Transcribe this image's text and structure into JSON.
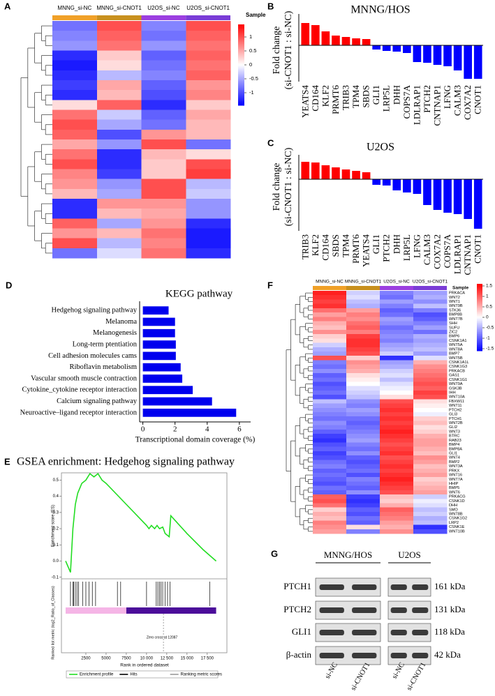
{
  "chart_data": [
    {
      "type": "heatmap",
      "label": "A",
      "columns": [
        "MNNG_si-NC",
        "MNNG_si-CNOT1",
        "U2OS_si-NC",
        "U2OS_si-CNOT1"
      ],
      "column_colors": [
        "#f0a028",
        "#c8901e",
        "#9b3fe0",
        "#7a3cd6"
      ],
      "legend_title": "Sample",
      "colors": [
        "#0000ff",
        "#ffffff",
        "#ff0000"
      ],
      "zlim": [
        -1.45,
        1.45
      ],
      "zticks": [
        1,
        0.5,
        0,
        -0.5,
        -1
      ],
      "values": [
        [
          -0.8,
          1.0,
          -0.7,
          1.0
        ],
        [
          -0.7,
          0.9,
          -0.8,
          0.9
        ],
        [
          -0.6,
          0.8,
          -0.6,
          0.8
        ],
        [
          -1.2,
          0.3,
          -0.9,
          0.9
        ],
        [
          -1.3,
          0.2,
          -0.8,
          0.8
        ],
        [
          -1.2,
          -0.4,
          -0.7,
          0.9
        ],
        [
          -1.1,
          0.5,
          -0.9,
          0.6
        ],
        [
          -1.2,
          0.4,
          -1.0,
          0.7
        ],
        [
          0.2,
          0.9,
          -1.2,
          0.3
        ],
        [
          0.8,
          -0.3,
          -0.9,
          0.5
        ],
        [
          1.0,
          -0.5,
          -0.8,
          0.4
        ],
        [
          0.9,
          -1.0,
          0.6,
          0.4
        ],
        [
          0.5,
          -0.6,
          1.0,
          -0.8
        ],
        [
          0.8,
          -1.2,
          0.4,
          0.2
        ],
        [
          1.0,
          -1.2,
          0.3,
          1.0
        ],
        [
          0.7,
          -1.1,
          0.3,
          1.1
        ],
        [
          0.6,
          -0.6,
          1.0,
          -0.4
        ],
        [
          0.4,
          -0.5,
          1.0,
          -0.3
        ],
        [
          -1.2,
          0.6,
          0.6,
          -0.6
        ],
        [
          -1.2,
          0.4,
          0.5,
          -0.6
        ],
        [
          0.9,
          -0.5,
          0.6,
          -1.2
        ],
        [
          0.6,
          0.4,
          0.8,
          -1.3
        ],
        [
          1.0,
          -0.4,
          0.7,
          -1.3
        ],
        [
          -0.8,
          -0.2,
          0.8,
          -1.2
        ]
      ]
    },
    {
      "type": "bar",
      "label": "B",
      "title": "MNNG/HOS",
      "ylabel": [
        "Fold change",
        "(si-CNOT1 : si-NC)"
      ],
      "categories": [
        "YEATS4",
        "CD164",
        "KLF2",
        "PRMT6",
        "TRIB3",
        "TPM4",
        "SBDS",
        "GLI1",
        "LRP5L",
        "DHH",
        "COPS7A",
        "LDLRAP1",
        "PTCH2",
        "CNTNAP1",
        "LFNG",
        "CALM3",
        "COX7A2",
        "CNOT1"
      ],
      "values": [
        1.6,
        1.45,
        1.0,
        0.7,
        0.6,
        0.5,
        0.45,
        -0.3,
        -0.4,
        -0.45,
        -0.55,
        -1.2,
        -1.25,
        -1.4,
        -1.5,
        -1.8,
        -2.4,
        -2.4
      ],
      "colors": {
        "positive": "#ff0000",
        "negative": "#0000ff"
      },
      "ylim": [
        -2.6,
        1.8
      ]
    },
    {
      "type": "bar",
      "label": "C",
      "title": "U2OS",
      "ylabel": [
        "Fold change",
        "(si-CNOT1 : si-NC)"
      ],
      "categories": [
        "TRIB3",
        "KLF2",
        "CD164",
        "SBDS",
        "TPM4",
        "PRMT6",
        "YEATS4",
        "GLI1",
        "PTCH2",
        "DHH",
        "LRP5L",
        "LFNG",
        "CALM3",
        "COX7A2",
        "COPS7A",
        "LDLRAP1",
        "CNTNAP1",
        "CNOT1"
      ],
      "values": [
        1.25,
        1.2,
        1.0,
        0.85,
        0.7,
        0.6,
        0.5,
        -0.4,
        -0.45,
        -0.8,
        -0.95,
        -1.05,
        -1.85,
        -2.2,
        -2.4,
        -2.5,
        -2.85,
        -3.55
      ],
      "colors": {
        "positive": "#ff0000",
        "negative": "#0000ff"
      },
      "ylim": [
        -3.7,
        1.4
      ]
    },
    {
      "type": "hbar",
      "label": "D",
      "title": "KEGG pathway",
      "xlabel": "Transcriptional domain coverage (%)",
      "categories": [
        "Hedgehog signaling pathway",
        "Melanoma",
        "Melanogenesis",
        "Long-term ptentiation",
        "Cell adhesion molecules cams",
        "Riboflavin metabolism",
        "Vascular smooth muscle contraction",
        "Cytokine_cytokine receptor interaction",
        "Calcium signaling pathway",
        "Neuroactive–ligand receptor interaction"
      ],
      "values": [
        1.6,
        2.0,
        2.0,
        2.05,
        2.05,
        2.35,
        2.45,
        3.1,
        4.3,
        5.8
      ],
      "color": "#0000ee",
      "xlim": [
        -0.2,
        6.7
      ],
      "xticks": [
        0,
        2,
        4,
        6
      ]
    },
    {
      "type": "gsea",
      "label": "E",
      "title": "GSEA enrichment: Hedgehog signaling pathway",
      "ylabel": "Enrichment score (ES)",
      "ylabel2": "Ranked list metric (log2_Ratio_of_Classes)",
      "xlabel": "Rank in ordered dataset",
      "series": [
        {
          "name": "Enrichment profile",
          "color": "#22dd22",
          "x": [
            0,
            600,
            900,
            1200,
            1500,
            2000,
            2500,
            3000,
            3500,
            4000,
            4500,
            5000,
            7500,
            10000,
            10300,
            10600,
            11000,
            11300,
            11600,
            12000,
            12300,
            12800,
            13000,
            15000,
            17000,
            18600
          ],
          "values": [
            0,
            -0.07,
            0.2,
            0.35,
            0.42,
            0.48,
            0.5,
            0.54,
            0.52,
            0.54,
            0.5,
            0.48,
            0.35,
            0.22,
            0.2,
            0.22,
            0.2,
            0.22,
            0.2,
            0.21,
            0.17,
            0.15,
            0.28,
            0.17,
            0.07,
            0
          ]
        },
        {
          "name": "Hits",
          "color": "#000000",
          "x": [
            600,
            900,
            1000,
            1200,
            1400,
            1600,
            2100,
            2500,
            2900,
            3300,
            3700,
            6400,
            6800,
            10000,
            11200,
            11400,
            11600,
            11800,
            12000,
            12300,
            12600,
            12900,
            17800
          ]
        },
        {
          "name": "Ranking metric scores",
          "color": "#999999"
        }
      ],
      "class_bar": [
        {
          "start": 0,
          "end": 7500,
          "color": "#f5b5e6"
        },
        {
          "start": 7500,
          "end": 18600,
          "color": "#4b0d9a"
        }
      ],
      "zero_cross": 12087,
      "annotation": "Zero cross at 12087",
      "xlim": [
        0,
        19500
      ],
      "xticks": [
        2500,
        5000,
        7500,
        {
          "value": 10000,
          "label": "10 000"
        },
        {
          "value": 12500,
          "label": "12 500"
        },
        {
          "value": 15000,
          "label": "15 000"
        },
        {
          "value": 17500,
          "label": "17 500"
        }
      ],
      "ylim": [
        -0.11,
        0.545
      ],
      "yticks": [
        0.5,
        0.4,
        0.3,
        0.2,
        0.1,
        {
          "value": 0,
          "label": "0.0"
        },
        -0.1
      ]
    },
    {
      "type": "heatmap",
      "label": "F",
      "columns": [
        "MNNG_si-NC",
        "MNNG_si-CNOT1",
        "U2OS_si-NC",
        "U2OS_si-CNOT1"
      ],
      "column_colors": [
        "#f0a028",
        "#c8901e",
        "#9b3fe0",
        "#7a3cd6"
      ],
      "legend_title": "Sample",
      "colors": [
        "#0000ff",
        "#ffffff",
        "#ff0000"
      ],
      "zlim": [
        -1.6,
        1.6
      ],
      "zticks": [
        1.5,
        1,
        0.5,
        0,
        -0.5,
        -1,
        -1.5
      ],
      "rows": [
        "PRKACA",
        "WNT2",
        "WNT1",
        "WNT9B",
        "STK36",
        "BMP8B",
        "WNT7B",
        "SHH",
        "SUFU",
        "ZIC2",
        "BMP6",
        "CSNK1A1",
        "WNT5A",
        "WNT8A",
        "BMP7",
        "WNT5B",
        "CSNK1A1L",
        "CSNK1G3",
        "PRKACB",
        "GAS1",
        "CSNK1G1",
        "WNT9A",
        "GSK3B",
        "IHH",
        "WNT10A",
        "FBXW11",
        "WNT11",
        "PTCH2",
        "GLI3",
        "PTCH1",
        "WNT2B",
        "GLI2",
        "WNT3",
        "BTRC",
        "RAB23",
        "BMP4",
        "BMP8A",
        "GLI1",
        "WNT4",
        "BMP2",
        "WNT3A",
        "PRKX",
        "WNT16",
        "WNT7A",
        "HHIP",
        "BMP5",
        "WNT6",
        "PRKACG",
        "CSNK1D",
        "DHH",
        "SMO",
        "WNT8B",
        "CSNK1G2",
        "LRP2",
        "CSNK1E",
        "WNT10B"
      ],
      "values": [
        [
          1.4,
          -0.3,
          -0.8,
          -0.6
        ],
        [
          1.3,
          -0.2,
          -0.9,
          -0.5
        ],
        [
          1.2,
          -0.4,
          -0.6,
          -0.7
        ],
        [
          1.3,
          -0.5,
          -0.8,
          -0.4
        ],
        [
          0.9,
          0.6,
          -1.0,
          -0.8
        ],
        [
          0.6,
          0.8,
          -0.9,
          -1.1
        ],
        [
          0.8,
          0.7,
          -0.6,
          -1.0
        ],
        [
          0.5,
          0.9,
          -0.7,
          -0.8
        ],
        [
          0.4,
          1.0,
          -0.9,
          -0.6
        ],
        [
          0.7,
          0.8,
          -0.8,
          -0.9
        ],
        [
          0.3,
          1.2,
          -0.7,
          -0.5
        ],
        [
          0.2,
          1.3,
          -0.8,
          -0.6
        ],
        [
          -0.3,
          1.3,
          -0.6,
          -0.5
        ],
        [
          -0.5,
          1.2,
          -0.5,
          -0.4
        ],
        [
          -0.6,
          1.1,
          -0.3,
          -0.6
        ],
        [
          1.1,
          0.3,
          -1.3,
          -0.2
        ],
        [
          -0.8,
          0.7,
          -0.6,
          0.5
        ],
        [
          -0.9,
          0.6,
          -0.5,
          0.7
        ],
        [
          -0.7,
          0.5,
          -0.3,
          0.8
        ],
        [
          -1.0,
          0.2,
          -0.2,
          0.9
        ],
        [
          -0.9,
          0.1,
          -0.4,
          1.0
        ],
        [
          -1.1,
          0.0,
          -0.2,
          1.1
        ],
        [
          -1.0,
          -0.2,
          -0.1,
          1.0
        ],
        [
          -0.9,
          -0.3,
          0.0,
          1.2
        ],
        [
          -1.1,
          -0.4,
          0.2,
          1.1
        ],
        [
          -0.4,
          -0.7,
          1.1,
          0.2
        ],
        [
          -0.6,
          -0.8,
          1.2,
          0.1
        ],
        [
          -0.7,
          -0.6,
          1.3,
          0.0
        ],
        [
          -0.8,
          -0.7,
          1.2,
          -0.1
        ],
        [
          -0.9,
          -0.9,
          1.3,
          0.3
        ],
        [
          -0.7,
          -1.0,
          1.2,
          0.4
        ],
        [
          -0.8,
          -0.9,
          1.3,
          0.2
        ],
        [
          -1.0,
          -0.8,
          1.4,
          0.3
        ],
        [
          -1.2,
          -0.7,
          1.3,
          0.5
        ],
        [
          -1.3,
          -0.6,
          1.2,
          0.6
        ],
        [
          -1.1,
          -0.8,
          1.1,
          0.6
        ],
        [
          -1.0,
          -0.9,
          1.2,
          0.5
        ],
        [
          -1.2,
          -0.7,
          1.3,
          0.4
        ],
        [
          -1.1,
          -1.0,
          1.1,
          0.7
        ],
        [
          -0.9,
          -1.1,
          1.2,
          0.6
        ],
        [
          -0.8,
          -1.0,
          1.3,
          0.4
        ],
        [
          -1.0,
          -0.9,
          1.2,
          0.5
        ],
        [
          -0.9,
          -1.1,
          1.3,
          0.6
        ],
        [
          -1.0,
          -0.8,
          1.4,
          0.3
        ],
        [
          -1.1,
          -0.9,
          1.3,
          0.4
        ],
        [
          -0.9,
          -1.0,
          1.2,
          0.5
        ],
        [
          -1.0,
          -0.7,
          1.1,
          0.6
        ],
        [
          1.0,
          -1.2,
          0.4,
          -0.3
        ],
        [
          1.1,
          -1.3,
          0.3,
          -0.1
        ],
        [
          0.9,
          -1.2,
          0.5,
          -0.2
        ],
        [
          0.3,
          -1.0,
          1.0,
          -0.4
        ],
        [
          0.5,
          -1.1,
          0.9,
          -0.3
        ],
        [
          0.4,
          -0.9,
          0.8,
          -0.5
        ],
        [
          0.8,
          -1.0,
          0.6,
          -0.4
        ],
        [
          0.7,
          0.2,
          0.5,
          -1.3
        ],
        [
          0.6,
          -0.8,
          0.7,
          -1.1
        ]
      ]
    },
    {
      "type": "blot",
      "label": "G",
      "groups": [
        {
          "name": "MNNG/HOS",
          "lanes": [
            "si-NC",
            "si-CNOT1"
          ]
        },
        {
          "name": "U2OS",
          "lanes": [
            "si-NC",
            "si-CNOT1"
          ]
        }
      ],
      "proteins": [
        {
          "name": "PTCH1",
          "size": "161 kDa"
        },
        {
          "name": "PTCH2",
          "size": "131 kDa"
        },
        {
          "name": "GLI1",
          "size": "118 kDa"
        },
        {
          "name": "β-actin",
          "size": "42 kDa"
        }
      ]
    }
  ]
}
